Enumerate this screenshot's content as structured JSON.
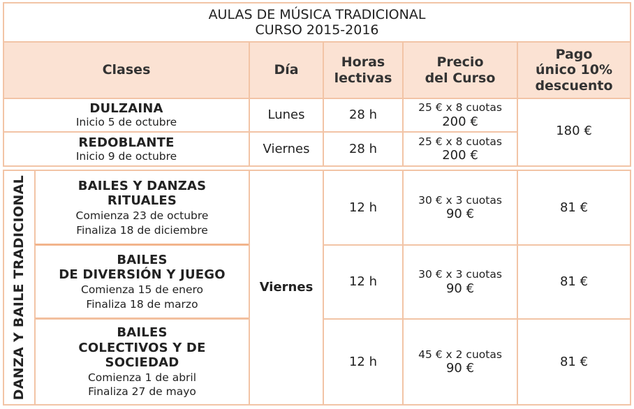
{
  "title": {
    "line1": "AULAS DE MÚSICA TRADICIONAL",
    "line2": "CURSO 2015-2016"
  },
  "headers": {
    "clases": "Clases",
    "dia": "Día",
    "horas": "Horas lectivas",
    "precio": "Precio del Curso",
    "pago": "Pago único 10% descuento"
  },
  "music_classes": [
    {
      "name": "DULZAINA",
      "start": "Inicio 5 de octubre",
      "day": "Lunes",
      "hours": "28 h",
      "installments": "25 € x 8 cuotas",
      "total": "200 €"
    },
    {
      "name": "REDOBLANTE",
      "start": "Inicio 9 de octubre",
      "day": "Viernes",
      "hours": "28 h",
      "installments": "25 € x 8 cuotas",
      "total": "200 €"
    }
  ],
  "music_single_payment": "180 €",
  "dance_group": {
    "label": "DANZA Y BAILE TRADICIONAL",
    "day": "Viernes"
  },
  "dance_classes": [
    {
      "name_lines": [
        "BAILES Y DANZAS",
        "RITUALES"
      ],
      "start": "Comienza 23 de octubre",
      "end": "Finaliza 18 de diciembre",
      "hours": "12 h",
      "installments": "30 € x 3 cuotas",
      "total": "90 €",
      "single": "81 €"
    },
    {
      "name_lines": [
        "BAILES",
        "DE DIVERSIÓN Y JUEGO"
      ],
      "start": "Comienza 15 de enero",
      "end": "Finaliza 18 de marzo",
      "hours": "12 h",
      "installments": "30 € x 3 cuotas",
      "total": "90 €",
      "single": "81 €"
    },
    {
      "name_lines": [
        "BAILES",
        "COLECTIVOS Y DE",
        "SOCIEDAD"
      ],
      "start": "Comienza 1 de abril",
      "end": "Finaliza 27 de mayo",
      "hours": "12 h",
      "installments": "45 € x 2 cuotas",
      "total": "90 €",
      "single": "81 €"
    }
  ],
  "colors": {
    "border": "#f2c4a6",
    "header_bg": "#fbe2d3"
  }
}
